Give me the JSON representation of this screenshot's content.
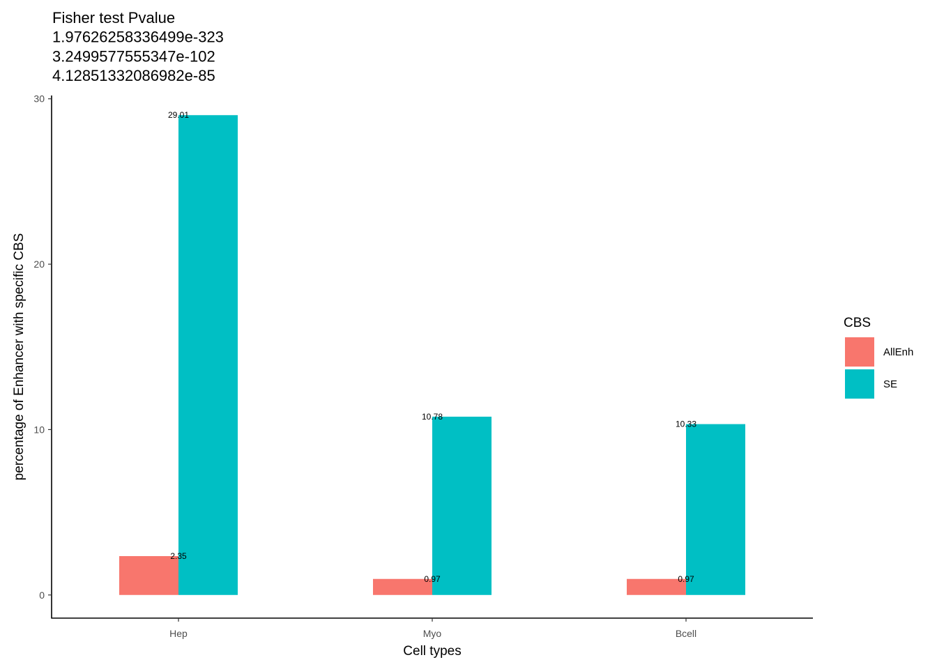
{
  "chart_data": {
    "type": "bar",
    "title_lines": [
      "Fisher test Pvalue",
      "1.97626258336499e-323",
      " 3.2499577555347e-102",
      "4.12851332086982e-85"
    ],
    "xlabel": "Cell types",
    "ylabel": "percentage of Enhancer with specific CBS",
    "categories": [
      "Hep",
      "Myo",
      "Bcell"
    ],
    "ylim": [
      -1.4,
      30.2
    ],
    "yticks": [
      0,
      10,
      20,
      30
    ],
    "grid": false,
    "legend_position": "right",
    "legend_title": "CBS",
    "series": [
      {
        "name": "AllEnh",
        "color": "#F8766D",
        "values": [
          2.35,
          0.97,
          0.97
        ],
        "labels": [
          "2.35",
          "0.97",
          "0.97"
        ]
      },
      {
        "name": "SE",
        "color": "#00BFC4",
        "values": [
          29.01,
          10.78,
          10.33
        ],
        "labels": [
          "29.01",
          "10.78",
          "10.33"
        ]
      }
    ]
  }
}
